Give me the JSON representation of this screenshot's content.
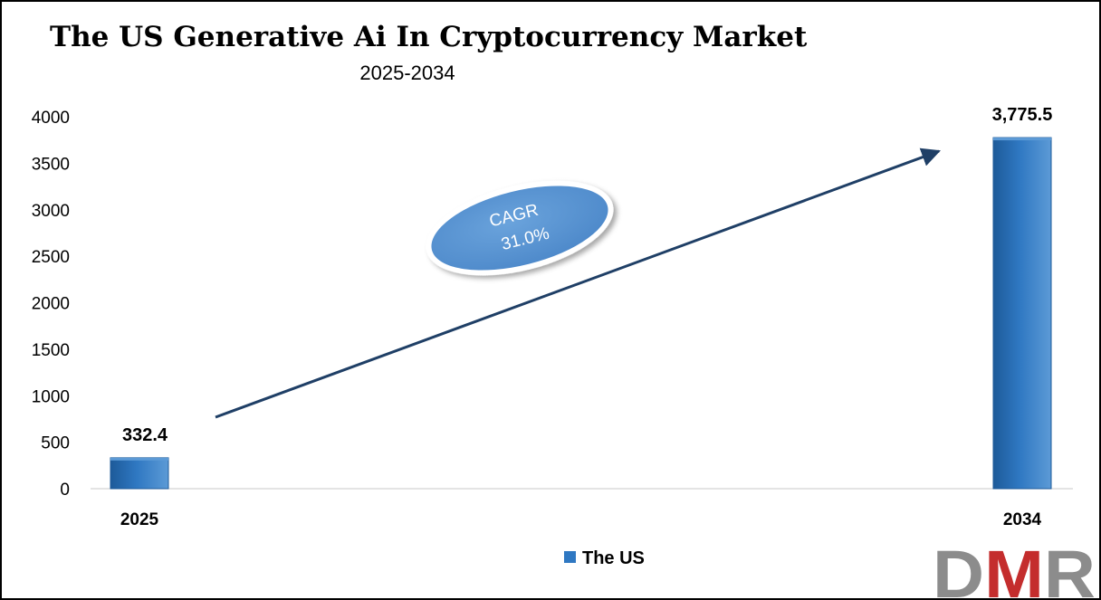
{
  "chart_data": {
    "type": "bar",
    "title": "The US Generative Ai In Cryptocurrency Market",
    "subtitle": "2025-2034",
    "categories": [
      "2025",
      "2034"
    ],
    "series": [
      {
        "name": "The US",
        "values": [
          332.4,
          3775.5
        ],
        "labels": [
          "332.4",
          "3,775.5"
        ]
      }
    ],
    "ylim": [
      0,
      4000
    ],
    "yticks": [
      0,
      500,
      1000,
      1500,
      2000,
      2500,
      3000,
      3500,
      4000
    ],
    "xlabel": "",
    "ylabel": "",
    "grid": false,
    "legend": "bottom-center",
    "annotation": {
      "line1": "CAGR",
      "line2": "31.0%"
    }
  },
  "colors": {
    "bar": "#2f78c2",
    "bar_dark": "#1d5a99",
    "bar_light": "#5c9ad6",
    "arrow": "#1f3f66",
    "ellipse": "#4a86c8",
    "logo_grey": "#8c8c8c",
    "logo_red": "#c42d2d"
  },
  "logo": {
    "text": "DMR"
  }
}
